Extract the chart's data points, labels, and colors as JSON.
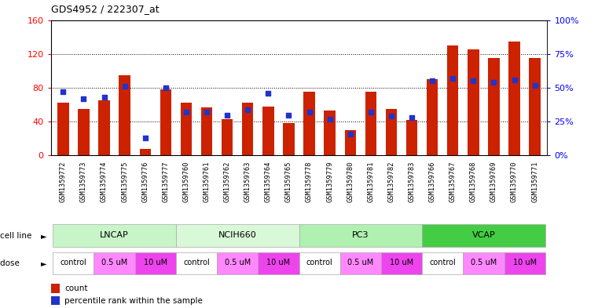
{
  "title": "GDS4952 / 222307_at",
  "samples": [
    "GSM1359772",
    "GSM1359773",
    "GSM1359774",
    "GSM1359775",
    "GSM1359776",
    "GSM1359777",
    "GSM1359760",
    "GSM1359761",
    "GSM1359762",
    "GSM1359763",
    "GSM1359764",
    "GSM1359765",
    "GSM1359778",
    "GSM1359779",
    "GSM1359780",
    "GSM1359781",
    "GSM1359782",
    "GSM1359783",
    "GSM1359766",
    "GSM1359767",
    "GSM1359768",
    "GSM1359769",
    "GSM1359770",
    "GSM1359771"
  ],
  "counts": [
    62,
    55,
    65,
    95,
    8,
    78,
    62,
    57,
    43,
    62,
    58,
    38,
    75,
    53,
    30,
    75,
    55,
    42,
    90,
    130,
    125,
    115,
    135,
    115
  ],
  "percentiles": [
    47,
    42,
    43,
    51,
    13,
    50,
    32,
    32,
    30,
    34,
    46,
    30,
    32,
    27,
    16,
    32,
    29,
    28,
    55,
    57,
    55,
    54,
    56,
    52
  ],
  "cell_lines": [
    {
      "name": "LNCAP",
      "start": 0,
      "end": 6,
      "color": "#c8f5c8"
    },
    {
      "name": "NCIH660",
      "start": 6,
      "end": 12,
      "color": "#d8f8d8"
    },
    {
      "name": "PC3",
      "start": 12,
      "end": 18,
      "color": "#b0f0b0"
    },
    {
      "name": "VCAP",
      "start": 18,
      "end": 24,
      "color": "#44cc44"
    }
  ],
  "dose_groups": [
    {
      "label": "control",
      "start": 0,
      "end": 2,
      "color": "#ffffff"
    },
    {
      "label": "0.5 uM",
      "start": 2,
      "end": 4,
      "color": "#ff88ff"
    },
    {
      "label": "10 uM",
      "start": 4,
      "end": 6,
      "color": "#ee44ee"
    },
    {
      "label": "control",
      "start": 6,
      "end": 8,
      "color": "#ffffff"
    },
    {
      "label": "0.5 uM",
      "start": 8,
      "end": 10,
      "color": "#ff88ff"
    },
    {
      "label": "10 uM",
      "start": 10,
      "end": 12,
      "color": "#ee44ee"
    },
    {
      "label": "control",
      "start": 12,
      "end": 14,
      "color": "#ffffff"
    },
    {
      "label": "0.5 uM",
      "start": 14,
      "end": 16,
      "color": "#ff88ff"
    },
    {
      "label": "10 uM",
      "start": 16,
      "end": 18,
      "color": "#ee44ee"
    },
    {
      "label": "control",
      "start": 18,
      "end": 20,
      "color": "#ffffff"
    },
    {
      "label": "0.5 uM",
      "start": 20,
      "end": 22,
      "color": "#ff88ff"
    },
    {
      "label": "10 uM",
      "start": 22,
      "end": 24,
      "color": "#ee44ee"
    }
  ],
  "bar_color": "#cc2200",
  "dot_color": "#2233cc",
  "left_ylim": [
    0,
    160
  ],
  "left_yticks": [
    0,
    40,
    80,
    120,
    160
  ],
  "right_yticks": [
    0,
    25,
    50,
    75,
    100
  ],
  "right_yticklabels": [
    "0%",
    "25%",
    "50%",
    "75%",
    "100%"
  ]
}
